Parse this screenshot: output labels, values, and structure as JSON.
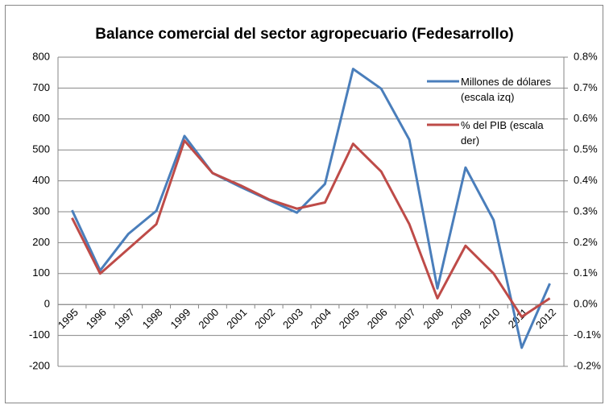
{
  "chart_data": {
    "type": "line",
    "title": "Balance comercial del sector agropecuario (Fedesarrollo)",
    "categories": [
      "1995",
      "1996",
      "1997",
      "1998",
      "1999",
      "2000",
      "2001",
      "2002",
      "2003",
      "2004",
      "2005",
      "2006",
      "2007",
      "2008",
      "2009",
      "2010",
      "2011",
      "2012"
    ],
    "series": [
      {
        "name": "Millones de dólares (escala izq)",
        "color": "#4a7ebb",
        "axis": "y",
        "values": [
          305,
          110,
          228,
          303,
          545,
          425,
          380,
          338,
          297,
          390,
          762,
          698,
          533,
          52,
          443,
          273,
          -140,
          68
        ]
      },
      {
        "name": "% del PIB (escala der)",
        "color": "#be4b48",
        "axis": "y2",
        "values": [
          0.28,
          0.1,
          0.18,
          0.26,
          0.53,
          0.425,
          0.385,
          0.34,
          0.31,
          0.33,
          0.52,
          0.43,
          0.26,
          0.02,
          0.19,
          0.1,
          -0.04,
          0.02
        ]
      }
    ],
    "ylim": [
      -200,
      800
    ],
    "yticks": [
      -200,
      -100,
      0,
      100,
      200,
      300,
      400,
      500,
      600,
      700,
      800
    ],
    "y2lim": [
      -0.2,
      0.8
    ],
    "y2ticks": [
      {
        "value": -0.2,
        "label": "-0.2%"
      },
      {
        "value": -0.1,
        "label": "-0.1%"
      },
      {
        "value": 0,
        "label": "0.0%"
      },
      {
        "value": 0.1,
        "label": "0.1%"
      },
      {
        "value": 0.2,
        "label": "0.2%"
      },
      {
        "value": 0.3,
        "label": "0.3%"
      },
      {
        "value": 0.4,
        "label": "0.4%"
      },
      {
        "value": 0.5,
        "label": "0.5%"
      },
      {
        "value": 0.6,
        "label": "0.6%"
      },
      {
        "value": 0.7,
        "label": "0.7%"
      },
      {
        "value": 0.8,
        "label": "0.8%"
      }
    ],
    "grid": true
  }
}
